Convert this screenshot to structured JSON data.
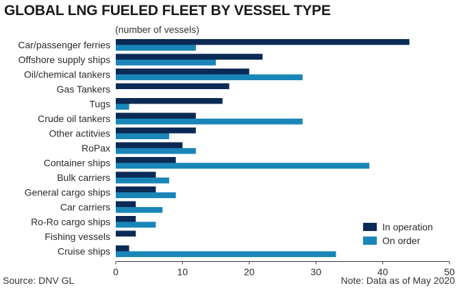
{
  "header": {
    "title": "GLOBAL LNG FUELED FLEET BY VESSEL TYPE",
    "subtitle": "(number of vessels)"
  },
  "footer": {
    "source": "Source: DNV GL",
    "note": "Note: Data as of May 2020"
  },
  "colors": {
    "in_operation": "#0b2a55",
    "on_order": "#1a86b8",
    "axis": "#333333"
  },
  "chart_data": {
    "type": "bar",
    "orientation": "horizontal",
    "title": "GLOBAL LNG FUELED FLEET BY VESSEL TYPE",
    "subtitle": "(number of vessels)",
    "categories": [
      "Car/passenger ferries",
      "Offshore supply ships",
      "Oil/chemical tankers",
      "Gas Tankers",
      "Tugs",
      "Crude oil tankers",
      "Other actitvies",
      "RoPax",
      "Container ships",
      "Bulk carriers",
      "General cargo ships",
      "Car carriers",
      "Ro-Ro cargo ships",
      "Fishing vessels",
      "Cruise ships"
    ],
    "series": [
      {
        "name": "In operation",
        "values": [
          44,
          22,
          20,
          17,
          16,
          12,
          12,
          10,
          9,
          6,
          6,
          3,
          3,
          3,
          2
        ]
      },
      {
        "name": "On order",
        "values": [
          12,
          15,
          28,
          0,
          2,
          28,
          8,
          12,
          38,
          8,
          9,
          7,
          6,
          0,
          33
        ]
      }
    ],
    "xlim": [
      0,
      50
    ],
    "xticks": [
      "0",
      "10",
      "20",
      "30",
      "40",
      "50"
    ],
    "grid": false,
    "legend_position": "bottom-right"
  }
}
